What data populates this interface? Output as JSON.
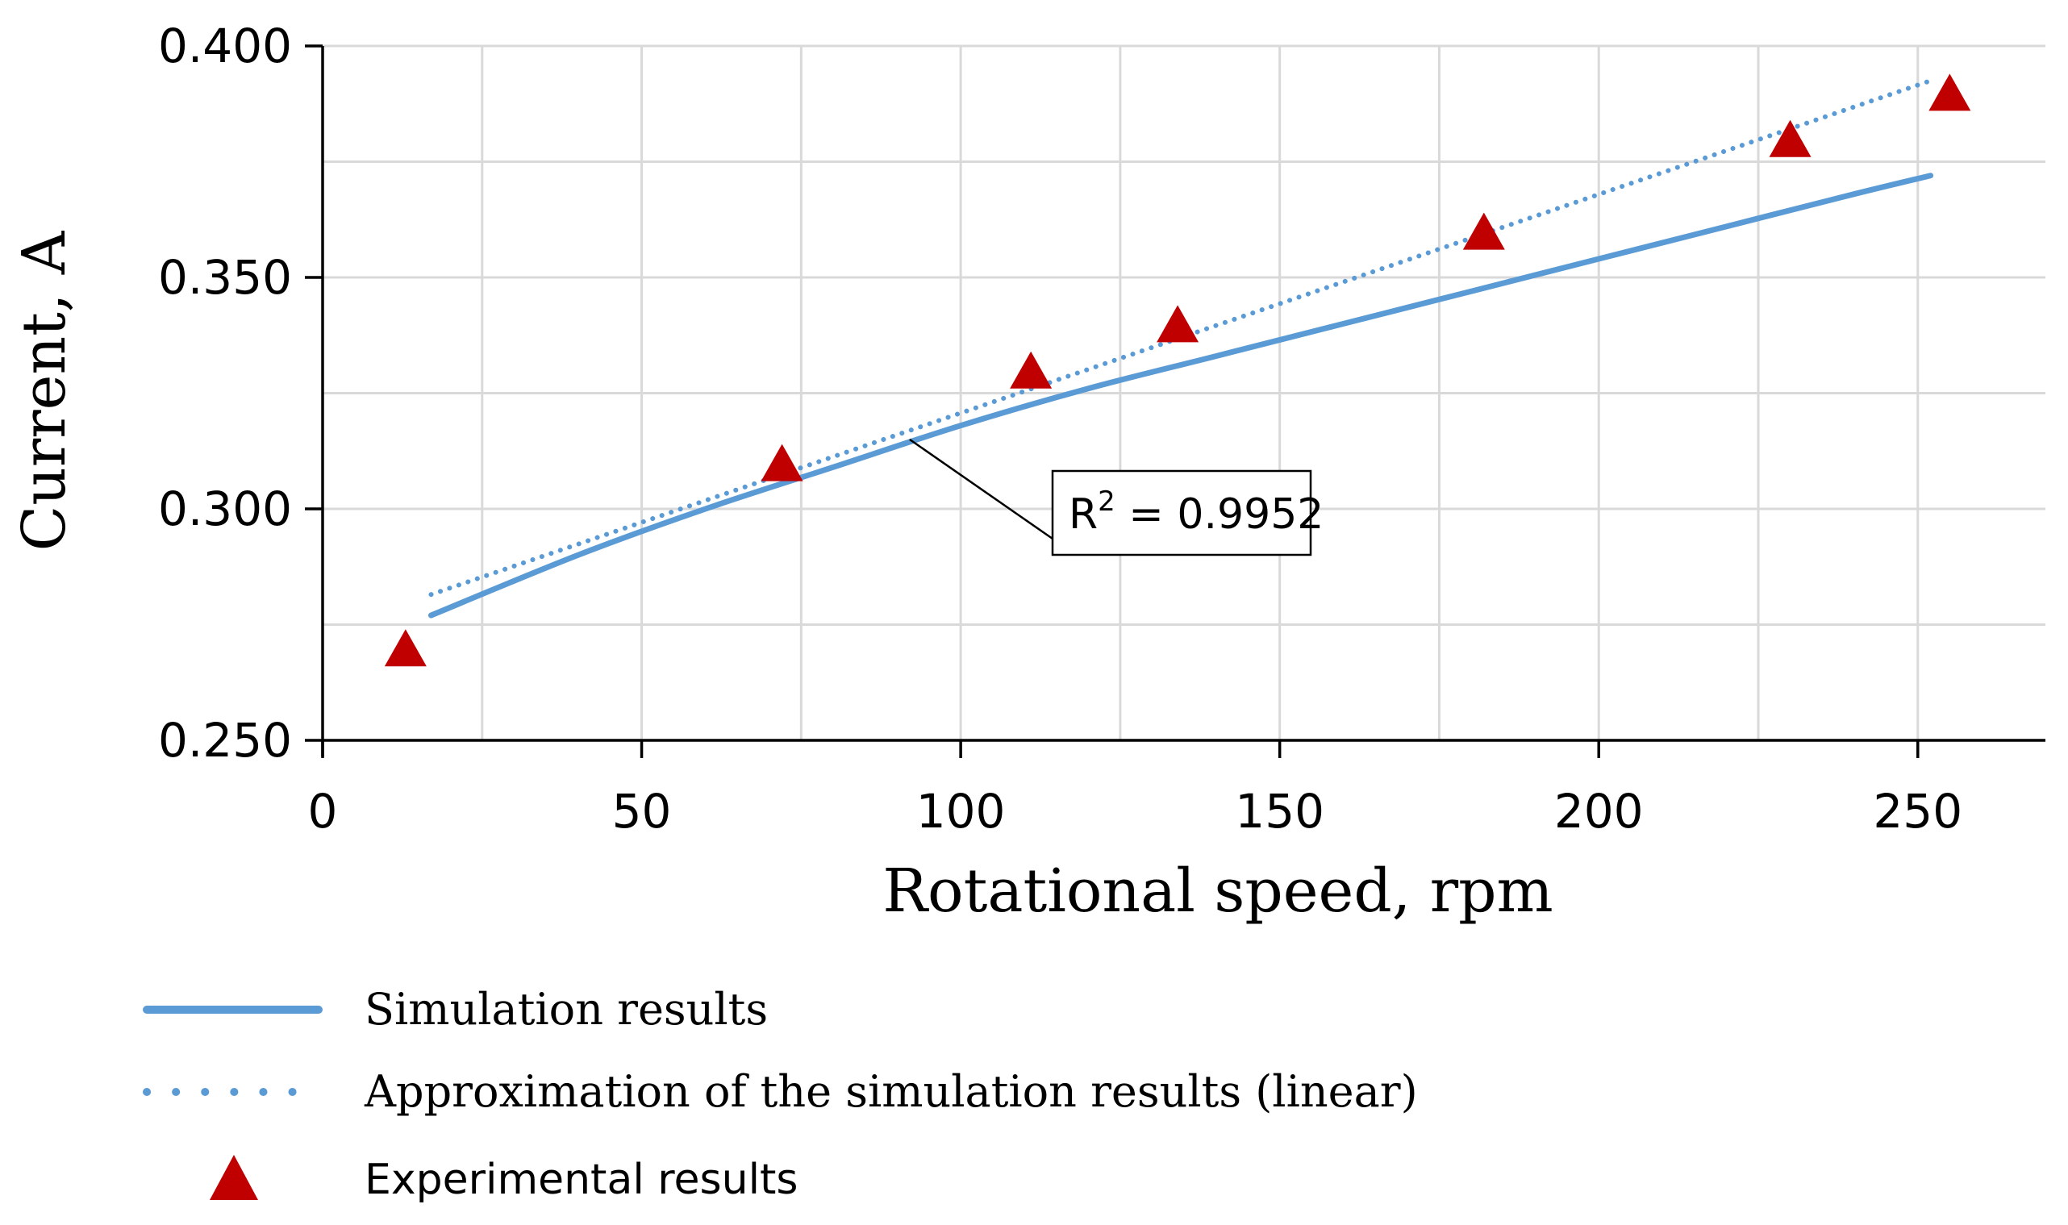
{
  "chart_data": {
    "type": "scatter",
    "title": "",
    "xlabel": "Rotational speed, rpm",
    "ylabel": "Current, A",
    "xlim": [
      0,
      270
    ],
    "ylim": [
      0.25,
      0.4
    ],
    "x_ticks": [
      0,
      50,
      100,
      150,
      200,
      250
    ],
    "x_tick_labels": [
      "0",
      "50",
      "100",
      "150",
      "200",
      "250"
    ],
    "y_ticks": [
      0.25,
      0.3,
      0.35,
      0.4
    ],
    "y_tick_labels": [
      "0.250",
      "0.300",
      "0.350",
      "0.400"
    ],
    "grid": true,
    "legend_position": "bottom",
    "series": [
      {
        "name": "Simulation results",
        "kind": "line",
        "color": "#5b9bd5",
        "x": [
          17,
          40,
          60,
          80,
          100,
          120,
          140,
          160,
          180,
          200,
          220,
          240,
          252
        ],
        "y": [
          0.277,
          0.29,
          0.3,
          0.309,
          0.318,
          0.326,
          0.333,
          0.34,
          0.347,
          0.354,
          0.361,
          0.368,
          0.372
        ]
      },
      {
        "name": "Approximation of the simulation results (linear)",
        "kind": "dotted-line",
        "color": "#5b9bd5",
        "x": [
          17,
          252
        ],
        "y": [
          0.2815,
          0.3925
        ]
      },
      {
        "name": "Experimental results",
        "kind": "marker",
        "marker": "triangle",
        "color": "#c00000",
        "x": [
          13,
          72,
          111,
          134,
          182,
          230,
          255
        ],
        "y": [
          0.27,
          0.31,
          0.33,
          0.34,
          0.36,
          0.38,
          0.39
        ]
      }
    ],
    "annotations": [
      {
        "text_prefix": "R",
        "text_sup": "2",
        "text_suffix": " = 0.9952",
        "points_to_x": 92,
        "points_to_y": 0.315
      }
    ]
  }
}
